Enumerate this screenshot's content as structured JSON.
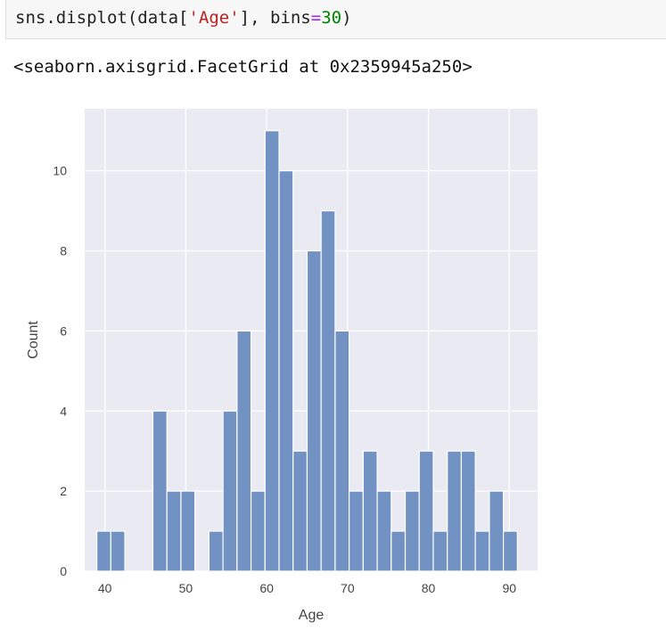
{
  "code": {
    "func": "sns.displot(data[",
    "arg_str": "'Age'",
    "mid": "], bins",
    "eq": "=",
    "bins": "30",
    "close": ")"
  },
  "output": {
    "text": "<seaborn.axisgrid.FacetGrid at 0x2359945a250>"
  },
  "colors": {
    "bar": "#7192c3",
    "axes_bg": "#eaeaf2",
    "grid": "#ffffff"
  },
  "chart_data": {
    "type": "bar",
    "title": "",
    "xlabel": "Age",
    "ylabel": "Count",
    "xlim": [
      37.5,
      93.5
    ],
    "ylim": [
      0,
      11.55
    ],
    "xticks": [
      40,
      50,
      60,
      70,
      80,
      90
    ],
    "yticks": [
      0,
      2,
      4,
      6,
      8,
      10
    ],
    "grid": true,
    "bin_start": 39,
    "bin_width": 1.7333,
    "values": [
      1,
      1,
      0,
      0,
      4,
      2,
      2,
      0,
      1,
      4,
      6,
      2,
      11,
      10,
      3,
      8,
      9,
      6,
      2,
      3,
      2,
      1,
      2,
      3,
      1,
      3,
      3,
      1,
      2,
      1
    ]
  }
}
